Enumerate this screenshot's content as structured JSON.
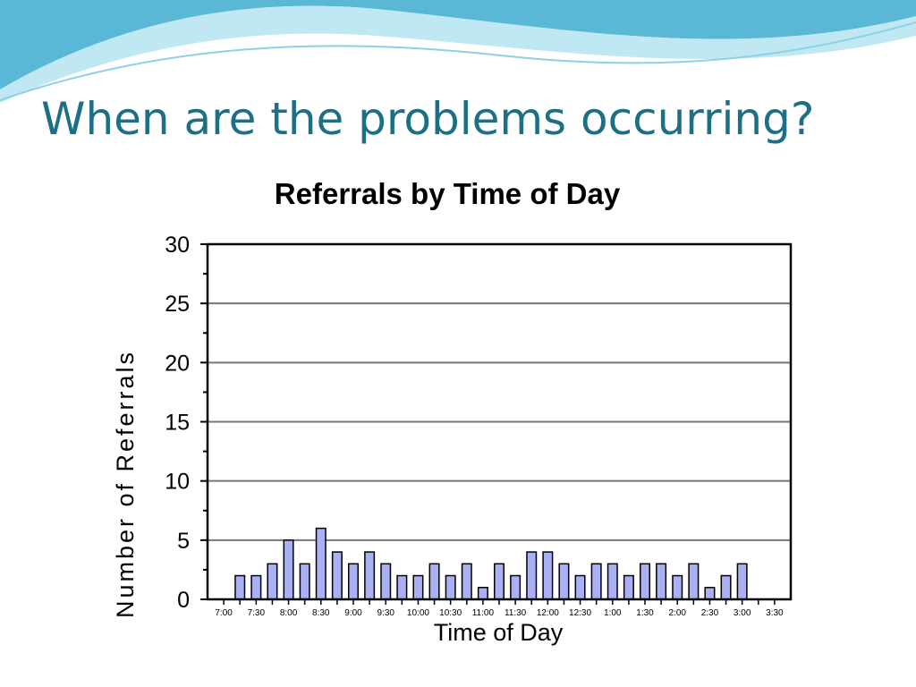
{
  "slide": {
    "title": "When are the problems occurring?"
  },
  "colors": {
    "title": "#1d6f86",
    "bar_fill": "#aab0f4",
    "bar_stroke": "#000000",
    "grid": "#777777",
    "wave_dark": "#5ab8d6",
    "wave_light": "#bfe8f3"
  },
  "chart_data": {
    "type": "bar",
    "title": "Referrals by Time of Day",
    "xlabel": "Time of Day",
    "ylabel": "Number of Referrals",
    "ylim": [
      0,
      30
    ],
    "yticks": [
      0,
      5,
      10,
      15,
      20,
      25,
      30
    ],
    "grid": true,
    "legend": "none",
    "tick_labels": [
      "7:00",
      "7:30",
      "8:00",
      "8:30",
      "9:00",
      "9:30",
      "10:00",
      "10:30",
      "11:00",
      "11:30",
      "12:00",
      "12:30",
      "1:00",
      "1:30",
      "2:00",
      "2:30",
      "3:00",
      "3:30"
    ],
    "categories": [
      "7:00",
      "7:15",
      "7:30",
      "7:45",
      "8:00",
      "8:15",
      "8:30",
      "8:45",
      "9:00",
      "9:15",
      "9:30",
      "9:45",
      "10:00",
      "10:15",
      "10:30",
      "10:45",
      "11:00",
      "11:15",
      "11:30",
      "11:45",
      "12:00",
      "12:15",
      "12:30",
      "12:45",
      "1:00",
      "1:15",
      "1:30",
      "1:45",
      "2:00",
      "2:15",
      "2:30",
      "2:45",
      "3:00",
      "3:15",
      "3:30"
    ],
    "values": [
      0,
      2,
      2,
      3,
      5,
      3,
      6,
      4,
      3,
      4,
      3,
      2,
      2,
      3,
      2,
      3,
      1,
      3,
      2,
      4,
      4,
      3,
      2,
      3,
      3,
      2,
      3,
      3,
      2,
      3,
      1,
      2,
      3,
      0,
      0
    ]
  }
}
